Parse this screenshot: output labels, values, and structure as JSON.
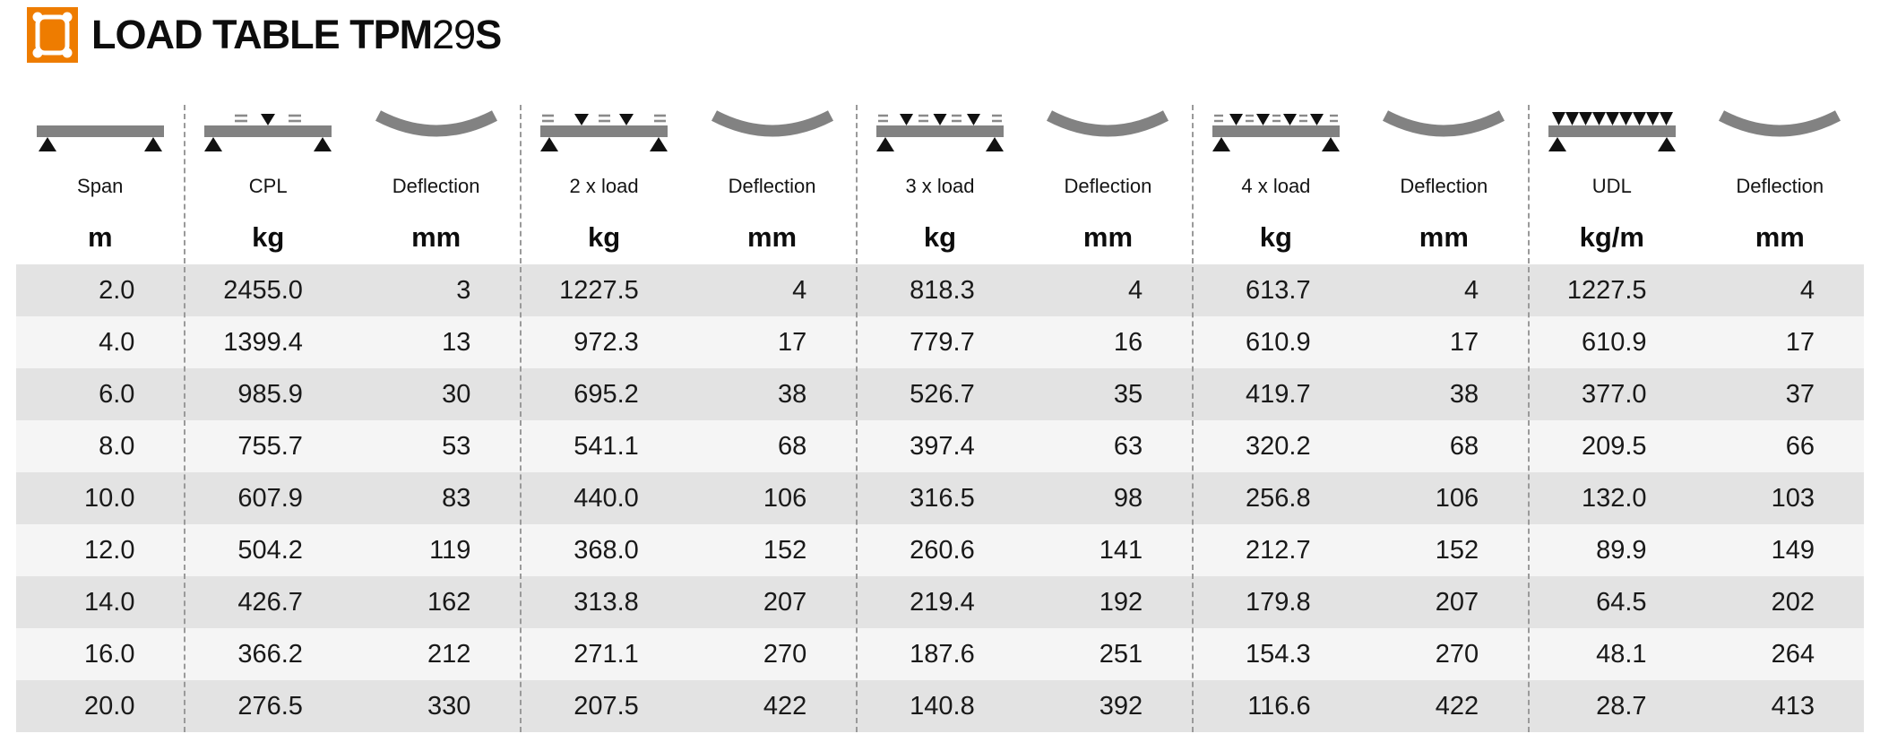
{
  "header": {
    "title_prefix": "LOAD TABLE TPM",
    "title_number": "29",
    "title_suffix": "S"
  },
  "colors": {
    "accent_orange": "#ee7c00",
    "row_dark": "#e3e3e3",
    "row_light": "#f5f5f5",
    "diagram_gray": "#828282",
    "divider_gray": "#9a9a9a"
  },
  "columns": [
    {
      "key": "span",
      "label": "Span",
      "unit": "m",
      "diagram": "beam-span"
    },
    {
      "key": "cpl",
      "label": "CPL",
      "unit": "kg",
      "diagram": "beam-1-point-load"
    },
    {
      "key": "deflection1",
      "label": "Deflection",
      "unit": "mm",
      "diagram": "deflection-curve"
    },
    {
      "key": "load2",
      "label": "2 x load",
      "unit": "kg",
      "diagram": "beam-2-point-loads"
    },
    {
      "key": "deflection2",
      "label": "Deflection",
      "unit": "mm",
      "diagram": "deflection-curve"
    },
    {
      "key": "load3",
      "label": "3 x load",
      "unit": "kg",
      "diagram": "beam-3-point-loads"
    },
    {
      "key": "deflection3",
      "label": "Deflection",
      "unit": "mm",
      "diagram": "deflection-curve"
    },
    {
      "key": "load4",
      "label": "4 x load",
      "unit": "kg",
      "diagram": "beam-4-point-loads"
    },
    {
      "key": "deflection4",
      "label": "Deflection",
      "unit": "mm",
      "diagram": "deflection-curve"
    },
    {
      "key": "udl",
      "label": "UDL",
      "unit": "kg/m",
      "diagram": "beam-udl"
    },
    {
      "key": "deflection5",
      "label": "Deflection",
      "unit": "mm",
      "diagram": "deflection-curve"
    }
  ],
  "layout": {
    "divider_after_columns": [
      1,
      3,
      5,
      7,
      9
    ],
    "column_count": 11
  },
  "rows": [
    [
      "2.0",
      "2455.0",
      "3",
      "1227.5",
      "4",
      "818.3",
      "4",
      "613.7",
      "4",
      "1227.5",
      "4"
    ],
    [
      "4.0",
      "1399.4",
      "13",
      "972.3",
      "17",
      "779.7",
      "16",
      "610.9",
      "17",
      "610.9",
      "17"
    ],
    [
      "6.0",
      "985.9",
      "30",
      "695.2",
      "38",
      "526.7",
      "35",
      "419.7",
      "38",
      "377.0",
      "37"
    ],
    [
      "8.0",
      "755.7",
      "53",
      "541.1",
      "68",
      "397.4",
      "63",
      "320.2",
      "68",
      "209.5",
      "66"
    ],
    [
      "10.0",
      "607.9",
      "83",
      "440.0",
      "106",
      "316.5",
      "98",
      "256.8",
      "106",
      "132.0",
      "103"
    ],
    [
      "12.0",
      "504.2",
      "119",
      "368.0",
      "152",
      "260.6",
      "141",
      "212.7",
      "152",
      "89.9",
      "149"
    ],
    [
      "14.0",
      "426.7",
      "162",
      "313.8",
      "207",
      "219.4",
      "192",
      "179.8",
      "207",
      "64.5",
      "202"
    ],
    [
      "16.0",
      "366.2",
      "212",
      "271.1",
      "270",
      "187.6",
      "251",
      "154.3",
      "270",
      "48.1",
      "264"
    ],
    [
      "20.0",
      "276.5",
      "330",
      "207.5",
      "422",
      "140.8",
      "392",
      "116.6",
      "422",
      "28.7",
      "413"
    ]
  ]
}
